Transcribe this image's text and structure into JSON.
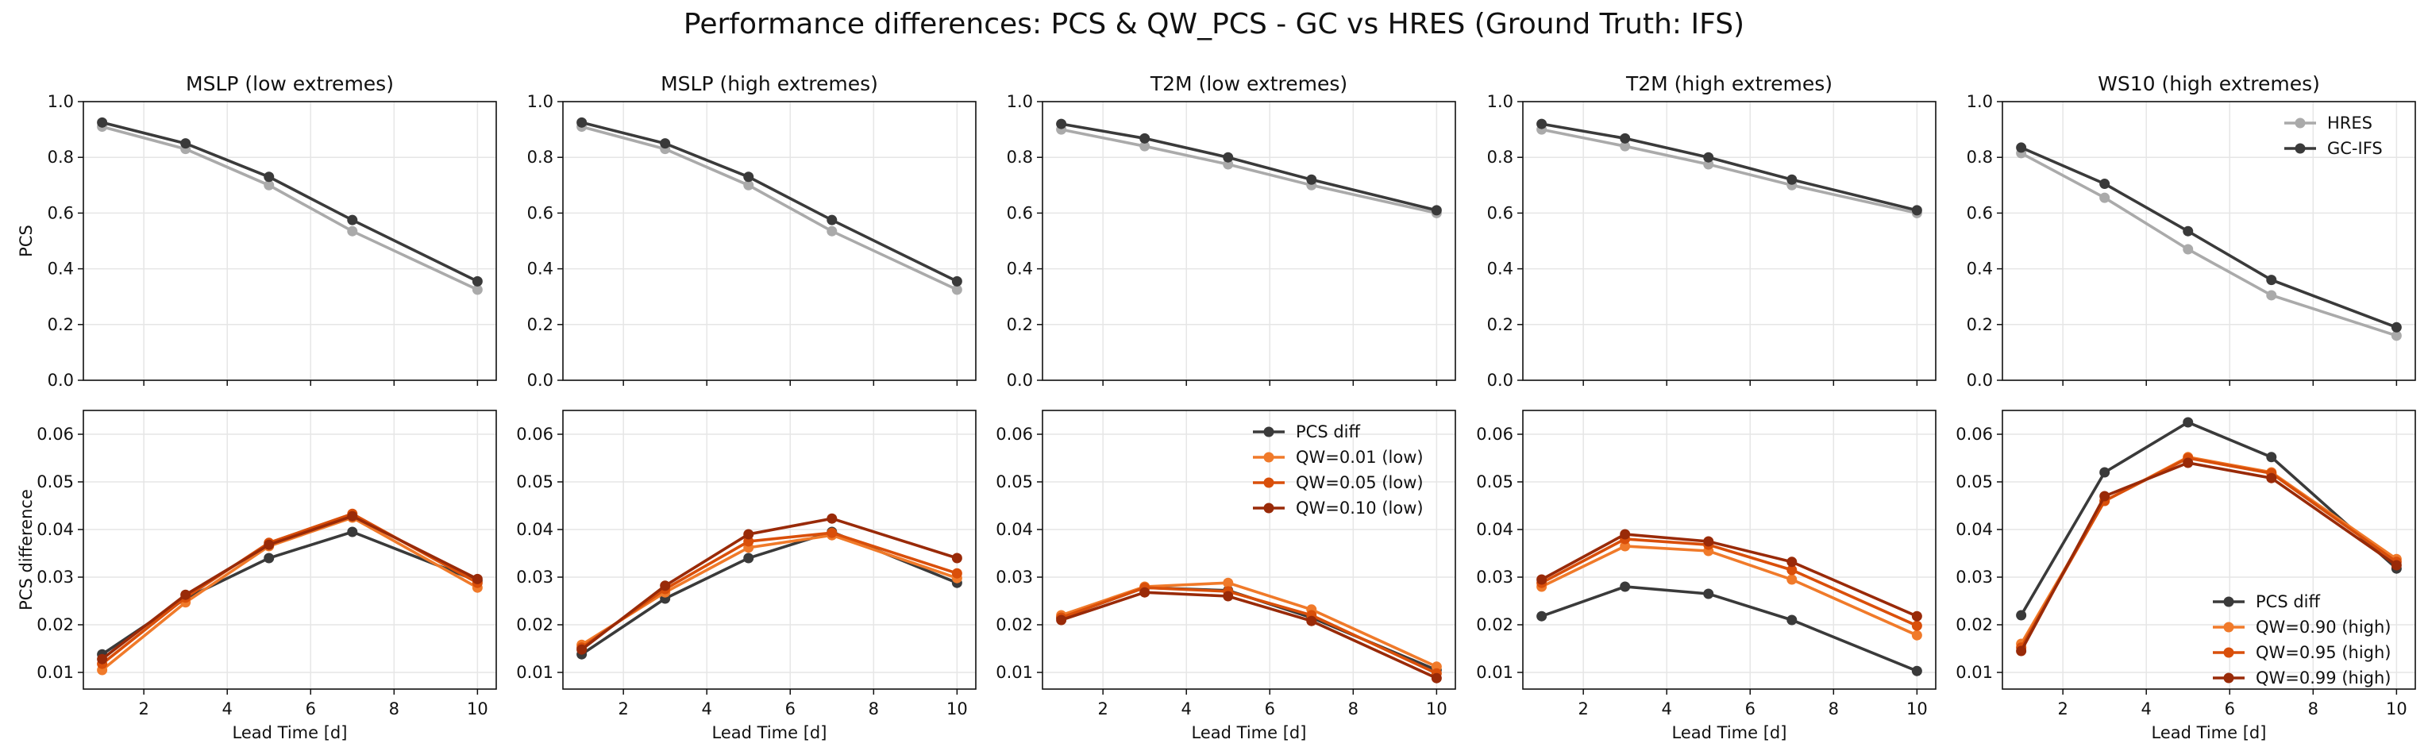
{
  "suptitle": "Performance differences: PCS & QW_PCS - GC vs HRES (Ground Truth: IFS)",
  "colors": {
    "hres": "#aaaaaa",
    "gc": "#3a3a3a",
    "pcs_diff": "#3a3a3a",
    "qw1": "#f07a2a",
    "qw2": "#d94f0a",
    "qw3": "#992a08",
    "grid": "#e6e6e6"
  },
  "chart_data": [
    {
      "panel": "top-1",
      "type": "line",
      "title": "MSLP (low extremes)",
      "xlabel": "",
      "ylabel": "PCS",
      "x": [
        1,
        3,
        5,
        7,
        10
      ],
      "xlim": [
        0.55,
        10.45
      ],
      "xticks": [
        2,
        4,
        6,
        8,
        10
      ],
      "ylim": [
        0.0,
        1.0
      ],
      "yticks": [
        "0.0",
        "0.2",
        "0.4",
        "0.6",
        "0.8",
        "1.0"
      ],
      "grid": true,
      "legend": "none",
      "series": [
        {
          "name": "HRES",
          "key": "hres",
          "values": [
            0.91,
            0.83,
            0.7,
            0.535,
            0.325
          ]
        },
        {
          "name": "GC-IFS",
          "key": "gc",
          "values": [
            0.925,
            0.85,
            0.73,
            0.575,
            0.355
          ]
        }
      ]
    },
    {
      "panel": "top-2",
      "type": "line",
      "title": "MSLP (high extremes)",
      "xlabel": "",
      "ylabel": "",
      "x": [
        1,
        3,
        5,
        7,
        10
      ],
      "xlim": [
        0.55,
        10.45
      ],
      "xticks": [
        2,
        4,
        6,
        8,
        10
      ],
      "ylim": [
        0.0,
        1.0
      ],
      "yticks": [
        "0.0",
        "0.2",
        "0.4",
        "0.6",
        "0.8",
        "1.0"
      ],
      "grid": true,
      "legend": "none",
      "series": [
        {
          "name": "HRES",
          "key": "hres",
          "values": [
            0.91,
            0.83,
            0.7,
            0.535,
            0.325
          ]
        },
        {
          "name": "GC-IFS",
          "key": "gc",
          "values": [
            0.925,
            0.85,
            0.73,
            0.575,
            0.355
          ]
        }
      ]
    },
    {
      "panel": "top-3",
      "type": "line",
      "title": "T2M (low extremes)",
      "xlabel": "",
      "ylabel": "",
      "x": [
        1,
        3,
        5,
        7,
        10
      ],
      "xlim": [
        0.55,
        10.45
      ],
      "xticks": [
        2,
        4,
        6,
        8,
        10
      ],
      "ylim": [
        0.0,
        1.0
      ],
      "yticks": [
        "0.0",
        "0.2",
        "0.4",
        "0.6",
        "0.8",
        "1.0"
      ],
      "grid": true,
      "legend": "none",
      "series": [
        {
          "name": "HRES",
          "key": "hres",
          "values": [
            0.9,
            0.84,
            0.775,
            0.7,
            0.6
          ]
        },
        {
          "name": "GC-IFS",
          "key": "gc",
          "values": [
            0.92,
            0.868,
            0.8,
            0.72,
            0.61
          ]
        }
      ]
    },
    {
      "panel": "top-4",
      "type": "line",
      "title": "T2M (high extremes)",
      "xlabel": "",
      "ylabel": "",
      "x": [
        1,
        3,
        5,
        7,
        10
      ],
      "xlim": [
        0.55,
        10.45
      ],
      "xticks": [
        2,
        4,
        6,
        8,
        10
      ],
      "ylim": [
        0.0,
        1.0
      ],
      "yticks": [
        "0.0",
        "0.2",
        "0.4",
        "0.6",
        "0.8",
        "1.0"
      ],
      "grid": true,
      "legend": "none",
      "series": [
        {
          "name": "HRES",
          "key": "hres",
          "values": [
            0.9,
            0.84,
            0.775,
            0.7,
            0.6
          ]
        },
        {
          "name": "GC-IFS",
          "key": "gc",
          "values": [
            0.92,
            0.868,
            0.8,
            0.72,
            0.61
          ]
        }
      ]
    },
    {
      "panel": "top-5",
      "type": "line",
      "title": "WS10 (high extremes)",
      "xlabel": "",
      "ylabel": "",
      "x": [
        1,
        3,
        5,
        7,
        10
      ],
      "xlim": [
        0.55,
        10.45
      ],
      "xticks": [
        2,
        4,
        6,
        8,
        10
      ],
      "ylim": [
        0.0,
        1.0
      ],
      "yticks": [
        "0.0",
        "0.2",
        "0.4",
        "0.6",
        "0.8",
        "1.0"
      ],
      "grid": true,
      "legend": "top-right",
      "series": [
        {
          "name": "HRES",
          "key": "hres",
          "values": [
            0.815,
            0.655,
            0.47,
            0.305,
            0.16
          ]
        },
        {
          "name": "GC-IFS",
          "key": "gc",
          "values": [
            0.835,
            0.705,
            0.535,
            0.36,
            0.19
          ]
        }
      ]
    },
    {
      "panel": "bottom-1",
      "type": "line",
      "title": "",
      "xlabel": "Lead Time [d]",
      "ylabel": "PCS difference",
      "x": [
        1,
        3,
        5,
        7,
        10
      ],
      "xlim": [
        0.55,
        10.45
      ],
      "xticks": [
        2,
        4,
        6,
        8,
        10
      ],
      "ylim": [
        0.0065,
        0.065
      ],
      "yticks": [
        "0.01",
        "0.02",
        "0.03",
        "0.04",
        "0.05",
        "0.06"
      ],
      "grid": true,
      "legend": "none",
      "series": [
        {
          "name": "PCS diff",
          "key": "pcs_diff",
          "values": [
            0.0138,
            0.0255,
            0.034,
            0.0395,
            0.0292
          ]
        },
        {
          "name": "QW=0.01 (low)",
          "key": "qw1",
          "values": [
            0.0105,
            0.0247,
            0.0365,
            0.0425,
            0.0278
          ]
        },
        {
          "name": "QW=0.05 (low)",
          "key": "qw2",
          "values": [
            0.0118,
            0.0257,
            0.0372,
            0.0433,
            0.0288
          ]
        },
        {
          "name": "QW=0.10 (low)",
          "key": "qw3",
          "values": [
            0.0128,
            0.0263,
            0.0368,
            0.0428,
            0.0296
          ]
        }
      ]
    },
    {
      "panel": "bottom-2",
      "type": "line",
      "title": "",
      "xlabel": "Lead Time [d]",
      "ylabel": "",
      "x": [
        1,
        3,
        5,
        7,
        10
      ],
      "xlim": [
        0.55,
        10.45
      ],
      "xticks": [
        2,
        4,
        6,
        8,
        10
      ],
      "ylim": [
        0.0065,
        0.065
      ],
      "yticks": [
        "0.01",
        "0.02",
        "0.03",
        "0.04",
        "0.05",
        "0.06"
      ],
      "grid": true,
      "legend": "none",
      "series": [
        {
          "name": "PCS diff",
          "key": "pcs_diff",
          "values": [
            0.0138,
            0.0255,
            0.034,
            0.0395,
            0.0288
          ]
        },
        {
          "name": "QW=0.90 (high)",
          "key": "qw1",
          "values": [
            0.0158,
            0.0268,
            0.0362,
            0.0388,
            0.0298
          ]
        },
        {
          "name": "QW=0.95 (high)",
          "key": "qw2",
          "values": [
            0.0152,
            0.0275,
            0.0375,
            0.0393,
            0.0308
          ]
        },
        {
          "name": "QW=0.99 (high)",
          "key": "qw3",
          "values": [
            0.0148,
            0.0282,
            0.039,
            0.0423,
            0.034
          ]
        }
      ]
    },
    {
      "panel": "bottom-3",
      "type": "line",
      "title": "",
      "xlabel": "Lead Time [d]",
      "ylabel": "",
      "x": [
        1,
        3,
        5,
        7,
        10
      ],
      "xlim": [
        0.55,
        10.45
      ],
      "xticks": [
        2,
        4,
        6,
        8,
        10
      ],
      "ylim": [
        0.0065,
        0.065
      ],
      "yticks": [
        "0.01",
        "0.02",
        "0.03",
        "0.04",
        "0.05",
        "0.06"
      ],
      "grid": true,
      "legend": "top-right",
      "series": [
        {
          "name": "PCS diff",
          "key": "pcs_diff",
          "values": [
            0.0215,
            0.0278,
            0.0272,
            0.0215,
            0.0105
          ]
        },
        {
          "name": "QW=0.01 (low)",
          "key": "qw1",
          "values": [
            0.022,
            0.028,
            0.0288,
            0.0232,
            0.0112
          ]
        },
        {
          "name": "QW=0.05 (low)",
          "key": "qw2",
          "values": [
            0.0215,
            0.0278,
            0.027,
            0.022,
            0.0098
          ]
        },
        {
          "name": "QW=0.10 (low)",
          "key": "qw3",
          "values": [
            0.021,
            0.0268,
            0.026,
            0.0208,
            0.0088
          ]
        }
      ]
    },
    {
      "panel": "bottom-4",
      "type": "line",
      "title": "",
      "xlabel": "Lead Time [d]",
      "ylabel": "",
      "x": [
        1,
        3,
        5,
        7,
        10
      ],
      "xlim": [
        0.55,
        10.45
      ],
      "xticks": [
        2,
        4,
        6,
        8,
        10
      ],
      "ylim": [
        0.0065,
        0.065
      ],
      "yticks": [
        "0.01",
        "0.02",
        "0.03",
        "0.04",
        "0.05",
        "0.06"
      ],
      "grid": true,
      "legend": "none",
      "series": [
        {
          "name": "PCS diff",
          "key": "pcs_diff",
          "values": [
            0.0218,
            0.028,
            0.0265,
            0.021,
            0.0103
          ]
        },
        {
          "name": "QW=0.90 (high)",
          "key": "qw1",
          "values": [
            0.028,
            0.0365,
            0.0355,
            0.0295,
            0.0178
          ]
        },
        {
          "name": "QW=0.95 (high)",
          "key": "qw2",
          "values": [
            0.0288,
            0.038,
            0.0368,
            0.0315,
            0.0198
          ]
        },
        {
          "name": "QW=0.99 (high)",
          "key": "qw3",
          "values": [
            0.0295,
            0.039,
            0.0375,
            0.0332,
            0.0218
          ]
        }
      ]
    },
    {
      "panel": "bottom-5",
      "type": "line",
      "title": "",
      "xlabel": "Lead Time [d]",
      "ylabel": "",
      "x": [
        1,
        3,
        5,
        7,
        10
      ],
      "xlim": [
        0.55,
        10.45
      ],
      "xticks": [
        2,
        4,
        6,
        8,
        10
      ],
      "ylim": [
        0.0065,
        0.065
      ],
      "yticks": [
        "0.01",
        "0.02",
        "0.03",
        "0.04",
        "0.05",
        "0.06"
      ],
      "grid": true,
      "legend": "bottom-right",
      "series": [
        {
          "name": "PCS diff",
          "key": "pcs_diff",
          "values": [
            0.022,
            0.052,
            0.0625,
            0.0552,
            0.0318
          ]
        },
        {
          "name": "QW=0.90 (high)",
          "key": "qw1",
          "values": [
            0.016,
            0.046,
            0.0552,
            0.052,
            0.0338
          ]
        },
        {
          "name": "QW=0.95 (high)",
          "key": "qw2",
          "values": [
            0.0152,
            0.046,
            0.055,
            0.0518,
            0.0332
          ]
        },
        {
          "name": "QW=0.99 (high)",
          "key": "qw3",
          "values": [
            0.0145,
            0.047,
            0.054,
            0.0508,
            0.0325
          ]
        }
      ]
    }
  ]
}
